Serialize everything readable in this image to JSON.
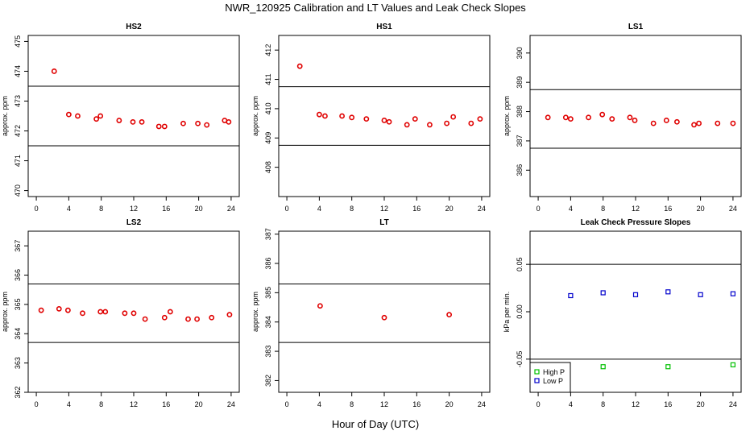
{
  "figure": {
    "title": "NWR_120925  Calibration and LT Values and Leak Check Slopes",
    "xlabel": "Hour of Day (UTC)"
  },
  "colors": {
    "calib": "#e00000",
    "high_p": "#00c000",
    "low_p": "#0000cc",
    "frame": "#000000"
  },
  "chart_data": [
    {
      "type": "scatter",
      "title": "HS2",
      "ylabel": "approx. ppm",
      "xlim": [
        -1,
        25
      ],
      "ylim": [
        469.8,
        475.2
      ],
      "xticks": [
        0,
        4,
        8,
        12,
        16,
        20,
        24
      ],
      "yticks": [
        470,
        471,
        472,
        473,
        474,
        475
      ],
      "hlines": [
        473.5,
        471.5
      ],
      "series": [
        {
          "name": "calibration",
          "color": "#e00000",
          "x": [
            2.2,
            4.0,
            5.1,
            7.4,
            7.9,
            10.2,
            11.9,
            13.0,
            15.1,
            15.8,
            18.1,
            19.9,
            21.0,
            23.2,
            23.7
          ],
          "y": [
            474.0,
            472.55,
            472.5,
            472.4,
            472.5,
            472.35,
            472.3,
            472.3,
            472.15,
            472.15,
            472.25,
            472.25,
            472.2,
            472.35,
            472.3
          ]
        }
      ]
    },
    {
      "type": "scatter",
      "title": "HS1",
      "ylabel": "approx. ppm",
      "xlim": [
        -1,
        25
      ],
      "ylim": [
        407.0,
        412.5
      ],
      "xticks": [
        0,
        4,
        8,
        12,
        16,
        20,
        24
      ],
      "yticks": [
        408,
        409,
        410,
        411,
        412
      ],
      "hlines": [
        410.75,
        408.75
      ],
      "series": [
        {
          "name": "calibration",
          "color": "#e00000",
          "x": [
            1.6,
            4.0,
            4.7,
            6.8,
            8.0,
            9.8,
            12.0,
            12.6,
            14.8,
            15.8,
            17.6,
            19.7,
            20.5,
            22.7,
            23.8
          ],
          "y": [
            411.45,
            409.8,
            409.75,
            409.75,
            409.7,
            409.65,
            409.6,
            409.55,
            409.45,
            409.65,
            409.45,
            409.5,
            409.72,
            409.5,
            409.65
          ]
        }
      ]
    },
    {
      "type": "scatter",
      "title": "LS1",
      "ylabel": "approx. ppm",
      "xlim": [
        -1,
        25
      ],
      "ylim": [
        385.1,
        390.6
      ],
      "xticks": [
        0,
        4,
        8,
        12,
        16,
        20,
        24
      ],
      "yticks": [
        386,
        387,
        388,
        389,
        390
      ],
      "hlines": [
        388.75,
        386.75
      ],
      "series": [
        {
          "name": "calibration",
          "color": "#e00000",
          "x": [
            1.2,
            3.4,
            4.0,
            6.2,
            7.9,
            9.1,
            11.3,
            11.9,
            14.2,
            15.8,
            17.1,
            19.2,
            19.8,
            22.1,
            24.0
          ],
          "y": [
            387.8,
            387.8,
            387.75,
            387.8,
            387.9,
            387.75,
            387.8,
            387.7,
            387.6,
            387.7,
            387.65,
            387.55,
            387.6,
            387.6,
            387.6
          ]
        }
      ]
    },
    {
      "type": "scatter",
      "title": "LS2",
      "ylabel": "approx. ppm",
      "xlim": [
        -1,
        25
      ],
      "ylim": [
        362.0,
        367.5
      ],
      "xticks": [
        0,
        4,
        8,
        12,
        16,
        20,
        24
      ],
      "yticks": [
        362,
        363,
        364,
        365,
        366,
        367
      ],
      "hlines": [
        365.7,
        363.7
      ],
      "series": [
        {
          "name": "calibration",
          "color": "#e00000",
          "x": [
            0.6,
            2.8,
            3.9,
            5.7,
            7.9,
            8.5,
            10.9,
            12.0,
            13.4,
            15.8,
            16.5,
            18.7,
            19.8,
            21.6,
            23.8
          ],
          "y": [
            364.8,
            364.85,
            364.8,
            364.7,
            364.75,
            364.75,
            364.7,
            364.7,
            364.5,
            364.55,
            364.75,
            364.5,
            364.5,
            364.55,
            364.65
          ]
        }
      ]
    },
    {
      "type": "scatter",
      "title": "LT",
      "ylabel": "approx. ppm",
      "xlim": [
        -1,
        25
      ],
      "ylim": [
        381.6,
        387.1
      ],
      "xticks": [
        0,
        4,
        8,
        12,
        16,
        20,
        24
      ],
      "yticks": [
        382,
        383,
        384,
        385,
        386,
        387
      ],
      "hlines": [
        385.3,
        383.3
      ],
      "series": [
        {
          "name": "LT",
          "color": "#e00000",
          "x": [
            4.1,
            12.0,
            20.0
          ],
          "y": [
            384.55,
            384.15,
            384.25
          ]
        }
      ]
    },
    {
      "type": "scatter",
      "title": "Leak Check Pressure Slopes",
      "ylabel": "kPa per min.",
      "xlim": [
        -1,
        25
      ],
      "ylim": [
        -0.085,
        0.085
      ],
      "xticks": [
        0,
        4,
        8,
        12,
        16,
        20,
        24
      ],
      "yticks": [
        -0.05,
        0.0,
        0.05
      ],
      "ytick_labels": [
        "-0.05",
        "0.00",
        "0.05"
      ],
      "hlines": [
        0.05,
        -0.05
      ],
      "series": [
        {
          "name": "High P",
          "color": "#00c000",
          "x": [
            8.0,
            16.0,
            24.0
          ],
          "y": [
            -0.058,
            -0.058,
            -0.056
          ]
        },
        {
          "name": "Low P",
          "color": "#0000cc",
          "x": [
            4.0,
            8.0,
            12.0,
            16.0,
            20.0,
            24.0
          ],
          "y": [
            0.017,
            0.02,
            0.018,
            0.021,
            0.018,
            0.019
          ]
        }
      ],
      "legend": {
        "position": "bottom-left",
        "entries": [
          "High P",
          "Low P"
        ]
      }
    }
  ]
}
